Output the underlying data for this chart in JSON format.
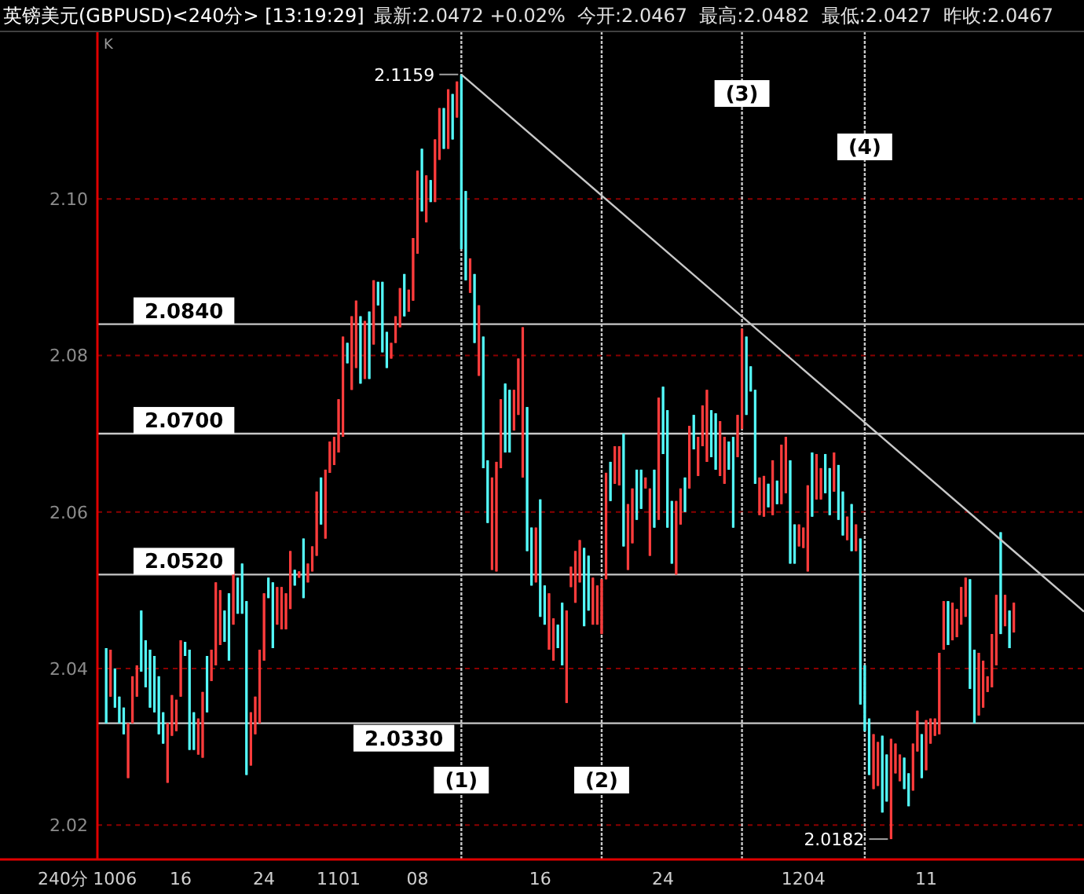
{
  "chart_data": {
    "type": "candlestick",
    "title": "英镑美元(GBPUSD)<240分> [13:19:29]",
    "subtitle": "最新:2.0472 +0.02%  今开:2.0467  最高:2.0482  最低:2.0427  昨收:2.0467",
    "annotations": [
      "K",
      "240分",
      "2.1159",
      "2.0182",
      "(1)",
      "(2)",
      "(3)",
      "(4)"
    ],
    "categories": [
      null,
      null,
      "1006",
      null,
      null,
      null,
      null,
      null,
      null,
      null,
      null,
      null,
      null,
      null,
      null,
      null,
      null,
      "16",
      null,
      null,
      null,
      null,
      null,
      null,
      null,
      null,
      null,
      null,
      null,
      null,
      null,
      null,
      null,
      null,
      null,
      null,
      "24",
      null,
      null,
      null,
      null,
      null,
      null,
      null,
      null,
      null,
      null,
      null,
      null,
      null,
      null,
      null,
      null,
      "1101",
      null,
      null,
      null,
      null,
      null,
      null,
      null,
      null,
      null,
      null,
      null,
      null,
      null,
      null,
      null,
      null,
      null,
      "08",
      null,
      null,
      null,
      null,
      null,
      null,
      null,
      null,
      null,
      null,
      null,
      null,
      null,
      null,
      null,
      null,
      null,
      null,
      null,
      null,
      null,
      null,
      null,
      null,
      null,
      null,
      null,
      "16",
      null,
      null,
      null,
      null,
      null,
      null,
      null,
      null,
      null,
      null,
      null,
      null,
      null,
      null,
      null,
      null,
      null,
      null,
      null,
      null,
      null,
      null,
      null,
      null,
      null,
      null,
      null,
      "24",
      null,
      null,
      null,
      null,
      null,
      null,
      null,
      null,
      null,
      null,
      null,
      null,
      null,
      null,
      null,
      null,
      null,
      null,
      null,
      null,
      null,
      null,
      null,
      null,
      null,
      null,
      null,
      null,
      null,
      null,
      null,
      "1204",
      null,
      null,
      null,
      null,
      null,
      null,
      null,
      null,
      null,
      null,
      null,
      null,
      null,
      null,
      null,
      null,
      null,
      null,
      null,
      null,
      null,
      null,
      null,
      null,
      null,
      null,
      null,
      "11",
      null,
      null,
      null,
      null,
      null,
      null,
      null,
      null,
      null,
      null,
      null,
      null,
      null,
      null,
      null,
      null,
      null,
      null,
      null,
      null
    ],
    "ohlc": [
      [
        2.0426,
        2.0426,
        2.033,
        2.033
      ],
      [
        2.0364,
        2.0424,
        2.0364,
        2.0424
      ],
      [
        2.04,
        2.04,
        2.035,
        2.035
      ],
      [
        2.0364,
        2.0364,
        2.033,
        2.033
      ],
      [
        2.035,
        2.035,
        2.0316,
        2.0316
      ],
      [
        2.026,
        2.033,
        2.026,
        2.033
      ],
      [
        2.033,
        2.039,
        2.033,
        2.039
      ],
      [
        2.0364,
        2.0404,
        2.0364,
        2.0404
      ],
      [
        2.0474,
        2.0474,
        2.0396,
        2.0396
      ],
      [
        2.0436,
        2.0436,
        2.0376,
        2.0376
      ],
      [
        2.0424,
        2.0424,
        2.035,
        2.035
      ],
      [
        2.0416,
        2.0416,
        2.0344,
        2.0344
      ],
      [
        2.039,
        2.039,
        2.0316,
        2.0316
      ],
      [
        2.0344,
        2.0344,
        2.0304,
        2.0304
      ],
      [
        2.0254,
        2.033,
        2.0254,
        2.033
      ],
      [
        2.0314,
        2.0366,
        2.0314,
        2.0366
      ],
      [
        2.032,
        2.036,
        2.032,
        2.036
      ],
      [
        2.0364,
        2.0436,
        2.0364,
        2.0436
      ],
      [
        2.0434,
        2.0434,
        2.0416,
        2.0416
      ],
      [
        2.0424,
        2.0424,
        2.0296,
        2.0296
      ],
      [
        2.0344,
        2.0344,
        2.0296,
        2.0296
      ],
      [
        2.029,
        2.0336,
        2.029,
        2.0336
      ],
      [
        2.0286,
        2.037,
        2.0286,
        2.037
      ],
      [
        2.0416,
        2.0416,
        2.0344,
        2.0344
      ],
      [
        2.0384,
        2.0424,
        2.0384,
        2.0424
      ],
      [
        2.0404,
        2.051,
        2.0404,
        2.051
      ],
      [
        2.043,
        2.05,
        2.043,
        2.05
      ],
      [
        2.0474,
        2.0474,
        2.0434,
        2.0434
      ],
      [
        2.0496,
        2.0496,
        2.041,
        2.041
      ],
      [
        2.0456,
        2.0524,
        2.0456,
        2.0524
      ],
      [
        2.0516,
        2.0516,
        2.047,
        2.047
      ],
      [
        2.0534,
        2.0534,
        2.047,
        2.047
      ],
      [
        2.0486,
        2.0486,
        2.0264,
        2.0264
      ],
      [
        2.0276,
        2.0344,
        2.0276,
        2.0344
      ],
      [
        2.0316,
        2.0364,
        2.0316,
        2.0364
      ],
      [
        2.033,
        2.0424,
        2.033,
        2.0424
      ],
      [
        2.041,
        2.0496,
        2.041,
        2.0496
      ],
      [
        2.0516,
        2.0516,
        2.049,
        2.049
      ],
      [
        2.051,
        2.051,
        2.0426,
        2.0426
      ],
      [
        2.0456,
        2.0504,
        2.0456,
        2.0504
      ],
      [
        2.045,
        2.0504,
        2.045,
        2.0504
      ],
      [
        2.045,
        2.0496,
        2.045,
        2.0496
      ],
      [
        2.0476,
        2.055,
        2.0476,
        2.055
      ],
      [
        2.0526,
        2.0526,
        2.0506,
        2.0506
      ],
      [
        2.0516,
        2.0524,
        2.0516,
        2.0524
      ],
      [
        2.0566,
        2.0566,
        2.049,
        2.049
      ],
      [
        2.051,
        2.0534,
        2.051,
        2.0534
      ],
      [
        2.0524,
        2.0556,
        2.0524,
        2.0556
      ],
      [
        2.0544,
        2.0626,
        2.0544,
        2.0626
      ],
      [
        2.0644,
        2.0644,
        2.0584,
        2.0584
      ],
      [
        2.0566,
        2.0654,
        2.0566,
        2.0654
      ],
      [
        2.065,
        2.069,
        2.065,
        2.069
      ],
      [
        2.066,
        2.0696,
        2.066,
        2.0696
      ],
      [
        2.0676,
        2.0744,
        2.0676,
        2.0744
      ],
      [
        2.0696,
        2.0824,
        2.0696,
        2.0824
      ],
      [
        2.0816,
        2.0816,
        2.079,
        2.079
      ],
      [
        2.0756,
        2.085,
        2.0756,
        2.085
      ],
      [
        2.0784,
        2.087,
        2.0784,
        2.087
      ],
      [
        2.085,
        2.085,
        2.0764,
        2.0764
      ],
      [
        2.077,
        2.0844,
        2.077,
        2.0844
      ],
      [
        2.0856,
        2.0856,
        2.077,
        2.077
      ],
      [
        2.0814,
        2.0896,
        2.0814,
        2.0896
      ],
      [
        2.0894,
        2.0894,
        2.0864,
        2.0864
      ],
      [
        2.0894,
        2.0894,
        2.0804,
        2.0804
      ],
      [
        2.083,
        2.083,
        2.0784,
        2.0784
      ],
      [
        2.0796,
        2.0816,
        2.0796,
        2.0816
      ],
      [
        2.0816,
        2.085,
        2.0816,
        2.085
      ],
      [
        2.0836,
        2.0886,
        2.0836,
        2.0886
      ],
      [
        2.0904,
        2.0904,
        2.085,
        2.085
      ],
      [
        2.0856,
        2.0884,
        2.0856,
        2.0884
      ],
      [
        2.087,
        2.095,
        2.087,
        2.095
      ],
      [
        2.093,
        2.1036,
        2.093,
        2.1036
      ],
      [
        2.1064,
        2.1064,
        2.0984,
        2.0984
      ],
      [
        2.097,
        2.103,
        2.097,
        2.103
      ],
      [
        2.1024,
        2.1024,
        2.0996,
        2.0996
      ],
      [
        2.0996,
        2.1076,
        2.0996,
        2.1076
      ],
      [
        2.105,
        2.1116,
        2.105,
        2.1116
      ],
      [
        2.1116,
        2.1116,
        2.1064,
        2.1064
      ],
      [
        2.1064,
        2.114,
        2.1064,
        2.114
      ],
      [
        2.1134,
        2.1134,
        2.1076,
        2.1076
      ],
      [
        2.1104,
        2.115,
        2.1104,
        2.115
      ],
      [
        2.1159,
        2.1159,
        2.0936,
        2.0936
      ],
      [
        2.101,
        2.101,
        2.0896,
        2.0896
      ],
      [
        2.088,
        2.0924,
        2.088,
        2.0924
      ],
      [
        2.0904,
        2.0904,
        2.0816,
        2.0816
      ],
      [
        2.0774,
        2.0864,
        2.0774,
        2.0864
      ],
      [
        2.0824,
        2.0824,
        2.0656,
        2.0656
      ],
      [
        2.0666,
        2.0666,
        2.0586,
        2.0586
      ],
      [
        2.0526,
        2.0644,
        2.0526,
        2.0644
      ],
      [
        2.0524,
        2.0664,
        2.0524,
        2.0664
      ],
      [
        2.0656,
        2.0744,
        2.0656,
        2.0744
      ],
      [
        2.0764,
        2.0764,
        2.0676,
        2.0676
      ],
      [
        2.0756,
        2.0756,
        2.0676,
        2.0676
      ],
      [
        2.0704,
        2.0756,
        2.0704,
        2.0756
      ],
      [
        2.0724,
        2.0796,
        2.0724,
        2.0796
      ],
      [
        2.0644,
        2.0836,
        2.0644,
        2.0836
      ],
      [
        2.0734,
        2.0734,
        2.055,
        2.055
      ],
      [
        2.058,
        2.058,
        2.0506,
        2.0506
      ],
      [
        2.051,
        2.058,
        2.051,
        2.058
      ],
      [
        2.0616,
        2.0616,
        2.0466,
        2.0466
      ],
      [
        2.0506,
        2.0506,
        2.0456,
        2.0456
      ],
      [
        2.0424,
        2.0496,
        2.0424,
        2.0496
      ],
      [
        2.041,
        2.0464,
        2.041,
        2.0464
      ],
      [
        2.0456,
        2.0456,
        2.0426,
        2.0426
      ],
      [
        2.0484,
        2.0484,
        2.0404,
        2.0404
      ],
      [
        2.0356,
        2.0474,
        2.0356,
        2.0474
      ],
      [
        2.0504,
        2.053,
        2.0504,
        2.053
      ],
      [
        2.0484,
        2.055,
        2.0484,
        2.055
      ],
      [
        2.051,
        2.0564,
        2.051,
        2.0564
      ],
      [
        2.0554,
        2.0554,
        2.0454,
        2.0454
      ],
      [
        2.0544,
        2.0544,
        2.0474,
        2.0474
      ],
      [
        2.0456,
        2.0516,
        2.0456,
        2.0516
      ],
      [
        2.0456,
        2.0506,
        2.0456,
        2.0506
      ],
      [
        2.0444,
        2.0514,
        2.0444,
        2.0514
      ],
      [
        2.0514,
        2.065,
        2.0514,
        2.065
      ],
      [
        2.0664,
        2.0664,
        2.0614,
        2.0614
      ],
      [
        2.0636,
        2.0684,
        2.0636,
        2.0684
      ],
      [
        2.0634,
        2.0684,
        2.0634,
        2.0684
      ],
      [
        2.07,
        2.07,
        2.0556,
        2.0556
      ],
      [
        2.0526,
        2.061,
        2.0526,
        2.061
      ],
      [
        2.056,
        2.063,
        2.056,
        2.063
      ],
      [
        2.0654,
        2.0654,
        2.059,
        2.059
      ],
      [
        2.0654,
        2.0654,
        2.0604,
        2.0604
      ],
      [
        2.063,
        2.0644,
        2.063,
        2.0644
      ],
      [
        2.0544,
        2.063,
        2.0544,
        2.063
      ],
      [
        2.0654,
        2.0654,
        2.058,
        2.058
      ],
      [
        2.059,
        2.0746,
        2.059,
        2.0746
      ],
      [
        2.076,
        2.076,
        2.0674,
        2.0674
      ],
      [
        2.073,
        2.073,
        2.058,
        2.058
      ],
      [
        2.0614,
        2.0614,
        2.0534,
        2.0534
      ],
      [
        2.052,
        2.0614,
        2.052,
        2.0614
      ],
      [
        2.0584,
        2.063,
        2.0584,
        2.063
      ],
      [
        2.0644,
        2.0644,
        2.06,
        2.06
      ],
      [
        2.063,
        2.071,
        2.063,
        2.071
      ],
      [
        2.0724,
        2.0724,
        2.068,
        2.068
      ],
      [
        2.0646,
        2.0696,
        2.0646,
        2.0696
      ],
      [
        2.0684,
        2.0736,
        2.0684,
        2.0736
      ],
      [
        2.0664,
        2.0756,
        2.0664,
        2.0756
      ],
      [
        2.073,
        2.073,
        2.067,
        2.067
      ],
      [
        2.0726,
        2.0726,
        2.0654,
        2.0654
      ],
      [
        2.0646,
        2.0716,
        2.0646,
        2.0716
      ],
      [
        2.0636,
        2.0696,
        2.0636,
        2.0696
      ],
      [
        2.069,
        2.069,
        2.0654,
        2.0654
      ],
      [
        2.0696,
        2.0696,
        2.058,
        2.058
      ],
      [
        2.067,
        2.0724,
        2.067,
        2.0724
      ],
      [
        2.0706,
        2.0834,
        2.0706,
        2.0834
      ],
      [
        2.0824,
        2.0824,
        2.0724,
        2.0724
      ],
      [
        2.0786,
        2.0786,
        2.0754,
        2.0754
      ],
      [
        2.0756,
        2.0756,
        2.0636,
        2.0636
      ],
      [
        2.0596,
        2.0644,
        2.0596,
        2.0644
      ],
      [
        2.0594,
        2.0646,
        2.0594,
        2.0646
      ],
      [
        2.0636,
        2.0636,
        2.0606,
        2.0606
      ],
      [
        2.0596,
        2.0666,
        2.0596,
        2.0666
      ],
      [
        2.064,
        2.064,
        2.061,
        2.061
      ],
      [
        2.061,
        2.0686,
        2.061,
        2.0686
      ],
      [
        2.0624,
        2.0696,
        2.0624,
        2.0696
      ],
      [
        2.0666,
        2.0666,
        2.0534,
        2.0534
      ],
      [
        2.0584,
        2.0584,
        2.0534,
        2.0534
      ],
      [
        2.0556,
        2.0584,
        2.0556,
        2.0584
      ],
      [
        2.0554,
        2.058,
        2.0554,
        2.058
      ],
      [
        2.0524,
        2.0634,
        2.0524,
        2.0634
      ],
      [
        2.0676,
        2.0676,
        2.0594,
        2.0594
      ],
      [
        2.0616,
        2.0674,
        2.0616,
        2.0674
      ],
      [
        2.0616,
        2.0656,
        2.0616,
        2.0656
      ],
      [
        2.0674,
        2.0674,
        2.0624,
        2.0624
      ],
      [
        2.0656,
        2.0656,
        2.0596,
        2.0596
      ],
      [
        2.0626,
        2.0676,
        2.0626,
        2.0676
      ],
      [
        2.066,
        2.066,
        2.059,
        2.059
      ],
      [
        2.0626,
        2.0626,
        2.057,
        2.057
      ],
      [
        2.0564,
        2.0594,
        2.0564,
        2.0594
      ],
      [
        2.061,
        2.061,
        2.055,
        2.055
      ],
      [
        2.055,
        2.0584,
        2.055,
        2.0584
      ],
      [
        2.0566,
        2.0566,
        2.0354,
        2.0354
      ],
      [
        2.0404,
        2.0404,
        2.032,
        2.032
      ],
      [
        2.0336,
        2.0336,
        2.0264,
        2.0264
      ],
      [
        2.0246,
        2.0316,
        2.0246,
        2.0316
      ],
      [
        2.025,
        2.0306,
        2.025,
        2.0306
      ],
      [
        2.0314,
        2.0314,
        2.0216,
        2.0216
      ],
      [
        2.029,
        2.029,
        2.023,
        2.023
      ],
      [
        2.0182,
        2.031,
        2.0182,
        2.031
      ],
      [
        2.0266,
        2.0304,
        2.0266,
        2.0304
      ],
      [
        2.0256,
        2.029,
        2.0256,
        2.029
      ],
      [
        2.0286,
        2.0286,
        2.0246,
        2.0246
      ],
      [
        2.0266,
        2.0266,
        2.0224,
        2.0224
      ],
      [
        2.0244,
        2.0304,
        2.0244,
        2.0304
      ],
      [
        2.0294,
        2.0346,
        2.0294,
        2.0346
      ],
      [
        2.0316,
        2.0316,
        2.026,
        2.026
      ],
      [
        2.027,
        2.0334,
        2.027,
        2.0334
      ],
      [
        2.0304,
        2.0336,
        2.0304,
        2.0336
      ],
      [
        2.0314,
        2.0336,
        2.0314,
        2.0336
      ],
      [
        2.0316,
        2.042,
        2.0316,
        2.042
      ],
      [
        2.0424,
        2.0486,
        2.0424,
        2.0486
      ],
      [
        2.0486,
        2.0486,
        2.043,
        2.043
      ],
      [
        2.0436,
        2.0484,
        2.0436,
        2.0484
      ],
      [
        2.044,
        2.0476,
        2.044,
        2.0476
      ],
      [
        2.0456,
        2.0504,
        2.0456,
        2.0504
      ],
      [
        2.0466,
        2.0516,
        2.0466,
        2.0516
      ],
      [
        2.0514,
        2.0514,
        2.0374,
        2.0374
      ],
      [
        2.0424,
        2.0424,
        2.033,
        2.033
      ],
      [
        2.034,
        2.042,
        2.034,
        2.042
      ],
      [
        2.035,
        2.041,
        2.035,
        2.041
      ],
      [
        2.037,
        2.039,
        2.037,
        2.039
      ],
      [
        2.0376,
        2.0444,
        2.0376,
        2.0444
      ],
      [
        2.0404,
        2.0494,
        2.0404,
        2.0494
      ],
      [
        2.0574,
        2.0574,
        2.0444,
        2.0444
      ],
      [
        2.0454,
        2.0494,
        2.0454,
        2.0494
      ],
      [
        2.0474,
        2.0474,
        2.0426,
        2.0426
      ],
      [
        2.0446,
        2.0484,
        2.0446,
        2.0484
      ]
    ],
    "colors": [
      "#54fcfc",
      "#ff3c3c",
      "#54fcfc",
      "#54fcfc",
      "#54fcfc",
      "#ff3c3c",
      "#ff3c3c",
      "#ff3c3c",
      "#54fcfc",
      "#54fcfc",
      "#54fcfc",
      "#54fcfc",
      "#54fcfc",
      "#54fcfc",
      "#ff3c3c",
      "#ff3c3c",
      "#ff3c3c",
      "#ff3c3c",
      "#54fcfc",
      "#54fcfc",
      "#54fcfc",
      "#ff3c3c",
      "#ff3c3c",
      "#54fcfc",
      "#ff3c3c",
      "#ff3c3c",
      "#ff3c3c",
      "#54fcfc",
      "#54fcfc",
      "#ff3c3c",
      "#54fcfc",
      "#54fcfc",
      "#54fcfc",
      "#ff3c3c",
      "#ff3c3c",
      "#ff3c3c",
      "#ff3c3c",
      "#54fcfc",
      "#54fcfc",
      "#ff3c3c",
      "#ff3c3c",
      "#ff3c3c",
      "#ff3c3c",
      "#54fcfc",
      "#ff3c3c",
      "#54fcfc",
      "#ff3c3c",
      "#ff3c3c",
      "#ff3c3c",
      "#54fcfc",
      "#ff3c3c",
      "#ff3c3c",
      "#ff3c3c",
      "#ff3c3c",
      "#ff3c3c",
      "#54fcfc",
      "#ff3c3c",
      "#ff3c3c",
      "#54fcfc",
      "#ff3c3c",
      "#54fcfc",
      "#ff3c3c",
      "#54fcfc",
      "#54fcfc",
      "#54fcfc",
      "#ff3c3c",
      "#ff3c3c",
      "#ff3c3c",
      "#54fcfc",
      "#ff3c3c",
      "#ff3c3c",
      "#ff3c3c",
      "#54fcfc",
      "#ff3c3c",
      "#54fcfc",
      "#ff3c3c",
      "#ff3c3c",
      "#54fcfc",
      "#ff3c3c",
      "#54fcfc",
      "#ff3c3c",
      "#54fcfc",
      "#54fcfc",
      "#ff3c3c",
      "#54fcfc",
      "#ff3c3c",
      "#54fcfc",
      "#54fcfc",
      "#ff3c3c",
      "#ff3c3c",
      "#ff3c3c",
      "#54fcfc",
      "#54fcfc",
      "#ff3c3c",
      "#ff3c3c",
      "#ff3c3c",
      "#54fcfc",
      "#54fcfc",
      "#ff3c3c",
      "#54fcfc",
      "#54fcfc",
      "#ff3c3c",
      "#ff3c3c",
      "#54fcfc",
      "#54fcfc",
      "#ff3c3c",
      "#ff3c3c",
      "#ff3c3c",
      "#ff3c3c",
      "#54fcfc",
      "#54fcfc",
      "#ff3c3c",
      "#ff3c3c",
      "#ff3c3c",
      "#ff3c3c",
      "#54fcfc",
      "#ff3c3c",
      "#ff3c3c",
      "#54fcfc",
      "#ff3c3c",
      "#ff3c3c",
      "#54fcfc",
      "#54fcfc",
      "#ff3c3c",
      "#ff3c3c",
      "#54fcfc",
      "#ff3c3c",
      "#54fcfc",
      "#54fcfc",
      "#54fcfc",
      "#ff3c3c",
      "#ff3c3c",
      "#54fcfc",
      "#ff3c3c",
      "#54fcfc",
      "#ff3c3c",
      "#ff3c3c",
      "#ff3c3c",
      "#54fcfc",
      "#54fcfc",
      "#ff3c3c",
      "#ff3c3c",
      "#54fcfc",
      "#54fcfc",
      "#ff3c3c",
      "#ff3c3c",
      "#54fcfc",
      "#54fcfc",
      "#54fcfc",
      "#ff3c3c",
      "#ff3c3c",
      "#54fcfc",
      "#ff3c3c",
      "#54fcfc",
      "#ff3c3c",
      "#ff3c3c",
      "#54fcfc",
      "#54fcfc",
      "#ff3c3c",
      "#ff3c3c",
      "#ff3c3c",
      "#54fcfc",
      "#ff3c3c",
      "#ff3c3c",
      "#54fcfc",
      "#54fcfc",
      "#ff3c3c",
      "#54fcfc",
      "#54fcfc",
      "#ff3c3c",
      "#54fcfc",
      "#ff3c3c",
      "#54fcfc",
      "#54fcfc",
      "#54fcfc",
      "#ff3c3c",
      "#ff3c3c",
      "#54fcfc",
      "#54fcfc",
      "#ff3c3c",
      "#ff3c3c",
      "#ff3c3c",
      "#54fcfc",
      "#54fcfc",
      "#ff3c3c",
      "#ff3c3c",
      "#54fcfc",
      "#ff3c3c",
      "#ff3c3c",
      "#ff3c3c",
      "#ff3c3c",
      "#ff3c3c",
      "#54fcfc",
      "#ff3c3c",
      "#ff3c3c",
      "#ff3c3c",
      "#ff3c3c",
      "#54fcfc",
      "#54fcfc",
      "#ff3c3c",
      "#ff3c3c",
      "#ff3c3c",
      "#ff3c3c",
      "#ff3c3c",
      "#54fcfc",
      "#ff3c3c",
      "#54fcfc",
      "#ff3c3c"
    ],
    "series": [
      {
        "type": "line",
        "values": [
          null,
          null,
          null,
          null,
          null,
          null,
          null,
          null,
          null,
          null,
          null,
          null,
          null,
          null,
          null,
          null,
          null,
          null,
          null,
          null,
          null,
          null,
          null,
          null,
          null,
          null,
          null,
          null,
          null,
          null,
          null,
          null,
          null,
          null,
          null,
          null,
          null,
          null,
          null,
          null,
          null,
          null,
          null,
          null,
          null,
          null,
          null,
          null,
          null,
          null,
          null,
          null,
          null,
          null,
          null,
          null,
          null,
          null,
          null,
          null,
          null,
          null,
          null,
          null,
          null,
          null,
          null,
          null,
          null,
          null,
          null,
          null,
          null,
          null,
          null,
          null,
          null,
          null,
          null,
          null,
          null,
          2.1159,
          null,
          null,
          null,
          null,
          null,
          null,
          null,
          null,
          null,
          null,
          null,
          null,
          null,
          null,
          null,
          null,
          null,
          null,
          null,
          null,
          null,
          null,
          null,
          null,
          null,
          null,
          null,
          null,
          null,
          null,
          null,
          null,
          null,
          null,
          null,
          null,
          null,
          null,
          null,
          null,
          null,
          null,
          null,
          null,
          null,
          null,
          null,
          null,
          null,
          null,
          null,
          null,
          null,
          null,
          null,
          null,
          null,
          null,
          null,
          null,
          null,
          null,
          null,
          null,
          null,
          null,
          null,
          null,
          null,
          null,
          null,
          null,
          null,
          null,
          null,
          null,
          null,
          null,
          null,
          null,
          null,
          null,
          null,
          null,
          null,
          null,
          null,
          null,
          null,
          null,
          null,
          null,
          null,
          null,
          null,
          null,
          null,
          null,
          null,
          null,
          null,
          null,
          null,
          null,
          null,
          null,
          null,
          null,
          null,
          null,
          null,
          null,
          null,
          null,
          null,
          null,
          null,
          null,
          null,
          null,
          null,
          null,
          null,
          null,
          null,
          2.055
        ],
        "color": "#c8c8c8"
      }
    ],
    "ylim": [
      2.0156,
      2.1214
    ],
    "yticks": [
      2.02,
      2.04,
      2.06,
      2.08,
      {
        "value": 2.1,
        "label": "2.10"
      }
    ],
    "grid": "y",
    "ref_lines": [
      {
        "axis": "y",
        "value": 2.084,
        "label": "2.0840",
        "color": "#c8c8c8"
      },
      {
        "axis": "y",
        "value": 2.07,
        "label": "2.0700",
        "color": "#c8c8c8"
      },
      {
        "axis": "y",
        "value": 2.052,
        "label": "2.0520",
        "color": "#c8c8c8"
      },
      {
        "axis": "y",
        "value": 2.033,
        "label": "2.0330",
        "color": "#c8c8c8"
      }
    ]
  }
}
